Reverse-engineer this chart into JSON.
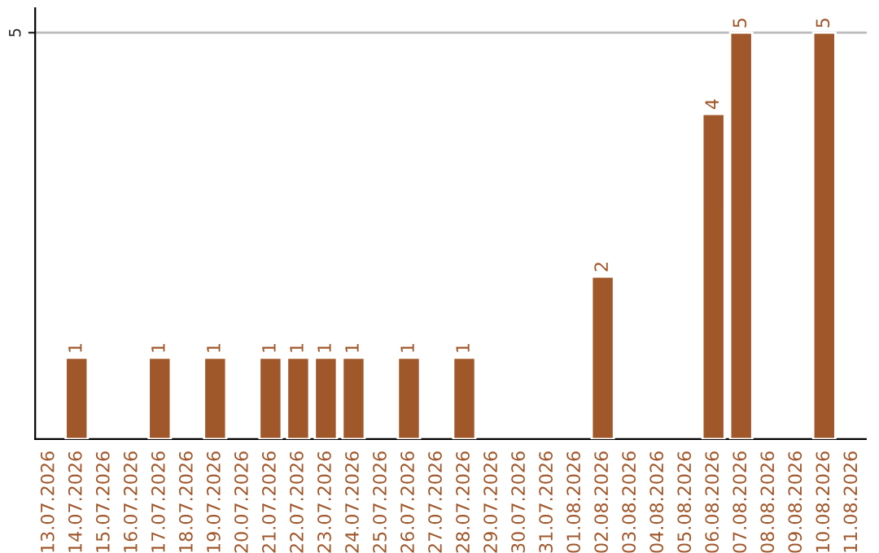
{
  "chart_data": {
    "type": "bar",
    "categories": [
      "13.07.2026",
      "14.07.2026",
      "15.07.2026",
      "16.07.2026",
      "17.07.2026",
      "18.07.2026",
      "19.07.2026",
      "20.07.2026",
      "21.07.2026",
      "22.07.2026",
      "23.07.2026",
      "24.07.2026",
      "25.07.2026",
      "26.07.2026",
      "27.07.2026",
      "28.07.2026",
      "29.07.2026",
      "30.07.2026",
      "31.07.2026",
      "01.08.2026",
      "02.08.2026",
      "03.08.2026",
      "04.08.2026",
      "05.08.2026",
      "06.08.2026",
      "07.08.2026",
      "08.08.2026",
      "09.08.2026",
      "10.08.2026",
      "11.08.2026"
    ],
    "values": [
      null,
      1,
      null,
      null,
      1,
      null,
      1,
      null,
      1,
      1,
      1,
      1,
      null,
      1,
      null,
      1,
      null,
      null,
      null,
      null,
      2,
      null,
      null,
      null,
      4,
      5,
      null,
      null,
      5,
      null
    ],
    "color": "#a0572a",
    "ylim": [
      0,
      5.3
    ],
    "yticks": [
      5
    ],
    "grid": "y",
    "data_labels": true
  }
}
